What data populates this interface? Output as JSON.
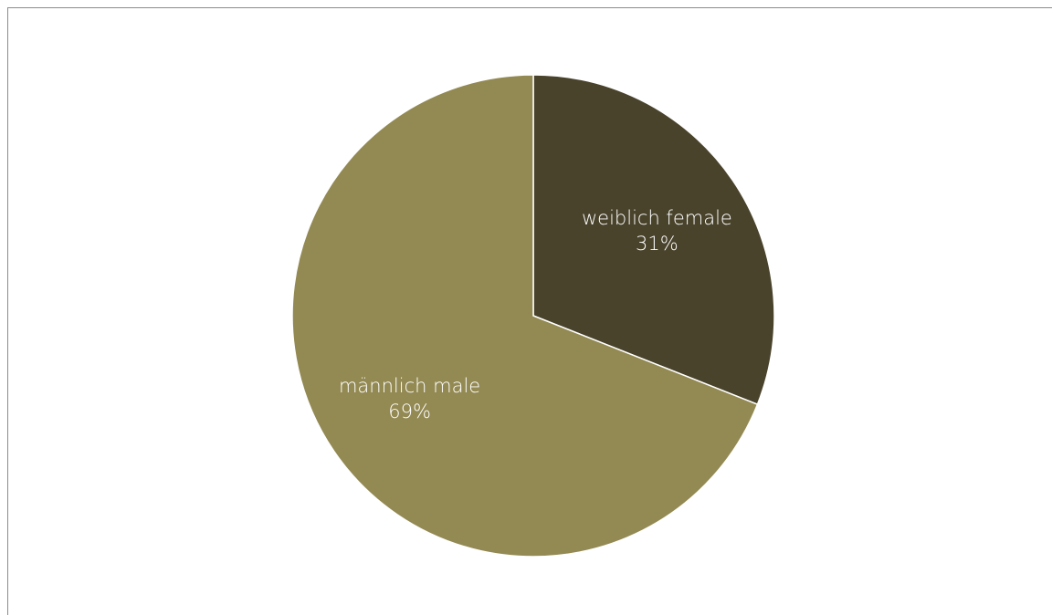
{
  "chart_data": {
    "type": "pie",
    "title": "",
    "categories": [
      "weiblich female",
      "männlich male"
    ],
    "values": [
      31,
      69
    ],
    "percent_labels": [
      "31%",
      "69%"
    ],
    "colors": [
      "#49432c",
      "#938953"
    ],
    "slice_border_color": "#ffffff",
    "legend": "none",
    "start": "12 o'clock, clockwise"
  }
}
